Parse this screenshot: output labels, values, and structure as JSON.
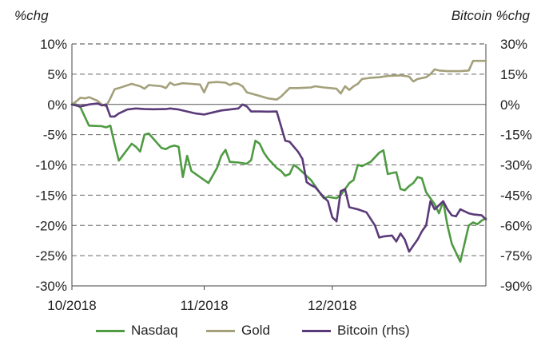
{
  "chart_data": {
    "type": "line",
    "y_left_label": "%chg",
    "y_right_label": "Bitcoin %chg",
    "y_left_ticks": [
      "10%",
      "5%",
      "0%",
      "-5%",
      "-10%",
      "-15%",
      "-20%",
      "-25%",
      "-30%"
    ],
    "y_right_ticks": [
      "30%",
      "15%",
      "0%",
      "-15%",
      "-30%",
      "-45%",
      "-60%",
      "-75%",
      "-90%"
    ],
    "y_left_range": [
      -30,
      10
    ],
    "y_right_range": [
      -90,
      30
    ],
    "x_ticks": [
      "10/2018",
      "11/2018",
      "12/2018"
    ],
    "x_range": [
      "2018-10-01",
      "2018-12-31"
    ],
    "grid": "horizontal dashed",
    "legend_position": "bottom",
    "series": [
      {
        "name": "Nasdaq",
        "axis": "left",
        "color": "#4f9a43",
        "points": [
          [
            "2018-10-01",
            0
          ],
          [
            "2018-10-02",
            0
          ],
          [
            "2018-10-03",
            -0.5
          ],
          [
            "2018-10-04",
            -2.0
          ],
          [
            "2018-10-05",
            -3.5
          ],
          [
            "2018-10-08",
            -3.6
          ],
          [
            "2018-10-09",
            -3.8
          ],
          [
            "2018-10-10",
            -3.5
          ],
          [
            "2018-10-11",
            -6.5
          ],
          [
            "2018-10-12",
            -9.3
          ],
          [
            "2018-10-15",
            -6.5
          ],
          [
            "2018-10-16",
            -7.0
          ],
          [
            "2018-10-17",
            -7.8
          ],
          [
            "2018-10-18",
            -5.0
          ],
          [
            "2018-10-19",
            -4.8
          ],
          [
            "2018-10-22",
            -7.2
          ],
          [
            "2018-10-23",
            -7.4
          ],
          [
            "2018-10-24",
            -7.0
          ],
          [
            "2018-10-25",
            -6.8
          ],
          [
            "2018-10-26",
            -7.0
          ],
          [
            "2018-10-27",
            -12.0
          ],
          [
            "2018-10-28",
            -8.5
          ],
          [
            "2018-10-29",
            -11.0
          ],
          [
            "2018-10-30",
            -11.5
          ],
          [
            "2018-11-02",
            -13.0
          ],
          [
            "2018-11-04",
            -10.5
          ],
          [
            "2018-11-05",
            -8.5
          ],
          [
            "2018-11-06",
            -7.5
          ],
          [
            "2018-11-07",
            -9.5
          ],
          [
            "2018-11-09",
            -9.6
          ],
          [
            "2018-11-11",
            -9.8
          ],
          [
            "2018-11-12",
            -9.2
          ],
          [
            "2018-11-13",
            -6.0
          ],
          [
            "2018-11-14",
            -6.5
          ],
          [
            "2018-11-15",
            -8.0
          ],
          [
            "2018-11-16",
            -9.0
          ],
          [
            "2018-11-18",
            -10.5
          ],
          [
            "2018-11-19",
            -11.0
          ],
          [
            "2018-11-20",
            -11.8
          ],
          [
            "2018-11-21",
            -11.5
          ],
          [
            "2018-11-22",
            -10.0
          ],
          [
            "2018-11-23",
            -10.5
          ],
          [
            "2018-11-26",
            -12.5
          ],
          [
            "2018-11-28",
            -14.5
          ],
          [
            "2018-11-29",
            -15.5
          ],
          [
            "2018-11-30",
            -15.3
          ],
          [
            "2018-12-02",
            -15.5
          ],
          [
            "2018-12-03",
            -15.0
          ],
          [
            "2018-12-04",
            -14.0
          ],
          [
            "2018-12-05",
            -13.0
          ],
          [
            "2018-12-06",
            -12.5
          ],
          [
            "2018-12-07",
            -10.0
          ],
          [
            "2018-12-08",
            -10.2
          ],
          [
            "2018-12-10",
            -9.5
          ],
          [
            "2018-12-12",
            -8.0
          ],
          [
            "2018-12-13",
            -7.6
          ],
          [
            "2018-12-14",
            -11.5
          ],
          [
            "2018-12-16",
            -11.2
          ],
          [
            "2018-12-17",
            -14.0
          ],
          [
            "2018-12-18",
            -14.2
          ],
          [
            "2018-12-19",
            -13.5
          ],
          [
            "2018-12-20",
            -13.0
          ],
          [
            "2018-12-21",
            -12.0
          ],
          [
            "2018-12-22",
            -12.2
          ],
          [
            "2018-12-23",
            -14.5
          ],
          [
            "2018-12-24",
            -15.5
          ],
          [
            "2018-12-25",
            -16.5
          ],
          [
            "2018-12-26",
            -18.0
          ],
          [
            "2018-12-27",
            -16.0
          ],
          [
            "2018-12-28",
            -20.0
          ],
          [
            "2018-12-29",
            -23.0
          ],
          [
            "2018-12-30",
            -24.5
          ],
          [
            "2018-12-31",
            -26.0
          ],
          [
            "2019-01-01",
            -23.0
          ],
          [
            "2019-01-02",
            -20.0
          ],
          [
            "2019-01-03",
            -19.5
          ],
          [
            "2019-01-04",
            -19.8
          ],
          [
            "2019-01-05",
            -19.2
          ],
          [
            "2019-01-06",
            -18.8
          ]
        ]
      },
      {
        "name": "Gold",
        "axis": "left",
        "color": "#a3a07a",
        "points": [
          [
            "2018-10-01",
            0
          ],
          [
            "2018-10-02",
            0.5
          ],
          [
            "2018-10-03",
            1.1
          ],
          [
            "2018-10-04",
            1.0
          ],
          [
            "2018-10-05",
            1.2
          ],
          [
            "2018-10-07",
            0.6
          ],
          [
            "2018-10-08",
            0.0
          ],
          [
            "2018-10-09",
            -0.3
          ],
          [
            "2018-10-10",
            1.0
          ],
          [
            "2018-10-11",
            2.5
          ],
          [
            "2018-10-12",
            2.7
          ],
          [
            "2018-10-15",
            3.4
          ],
          [
            "2018-10-17",
            3.0
          ],
          [
            "2018-10-18",
            2.6
          ],
          [
            "2018-10-19",
            3.2
          ],
          [
            "2018-10-22",
            3.0
          ],
          [
            "2018-10-23",
            2.7
          ],
          [
            "2018-10-24",
            3.6
          ],
          [
            "2018-10-25",
            3.2
          ],
          [
            "2018-10-27",
            3.5
          ],
          [
            "2018-10-29",
            3.4
          ],
          [
            "2018-10-31",
            3.3
          ],
          [
            "2018-11-01",
            2.0
          ],
          [
            "2018-11-02",
            3.6
          ],
          [
            "2018-11-04",
            3.7
          ],
          [
            "2018-11-06",
            3.6
          ],
          [
            "2018-11-07",
            3.2
          ],
          [
            "2018-11-08",
            3.5
          ],
          [
            "2018-11-09",
            3.4
          ],
          [
            "2018-11-10",
            3.0
          ],
          [
            "2018-11-11",
            2.0
          ],
          [
            "2018-11-12",
            1.8
          ],
          [
            "2018-11-14",
            1.4
          ],
          [
            "2018-11-16",
            1.0
          ],
          [
            "2018-11-18",
            0.8
          ],
          [
            "2018-11-19",
            1.3
          ],
          [
            "2018-11-20",
            2.0
          ],
          [
            "2018-11-21",
            2.7
          ],
          [
            "2018-11-23",
            2.7
          ],
          [
            "2018-11-26",
            2.8
          ],
          [
            "2018-11-27",
            3.0
          ],
          [
            "2018-11-29",
            2.8
          ],
          [
            "2018-12-02",
            2.6
          ],
          [
            "2018-12-03",
            1.8
          ],
          [
            "2018-12-04",
            3.0
          ],
          [
            "2018-12-05",
            2.4
          ],
          [
            "2018-12-06",
            3.0
          ],
          [
            "2018-12-07",
            3.4
          ],
          [
            "2018-12-08",
            4.2
          ],
          [
            "2018-12-10",
            4.4
          ],
          [
            "2018-12-12",
            4.5
          ],
          [
            "2018-12-14",
            4.7
          ],
          [
            "2018-12-17",
            4.8
          ],
          [
            "2018-12-19",
            4.6
          ],
          [
            "2018-12-20",
            3.8
          ],
          [
            "2018-12-21",
            4.2
          ],
          [
            "2018-12-23",
            4.5
          ],
          [
            "2018-12-24",
            5.0
          ],
          [
            "2018-12-25",
            5.8
          ],
          [
            "2018-12-26",
            5.6
          ],
          [
            "2018-12-28",
            5.5
          ],
          [
            "2018-12-31",
            5.5
          ],
          [
            "2019-01-02",
            5.6
          ],
          [
            "2019-01-03",
            7.2
          ],
          [
            "2019-01-05",
            7.2
          ],
          [
            "2019-01-06",
            7.2
          ]
        ]
      },
      {
        "name": "Bitcoin (rhs)",
        "axis": "right",
        "color": "#5a3a78",
        "points": [
          [
            "2018-10-01",
            0
          ],
          [
            "2018-10-03",
            -1.0
          ],
          [
            "2018-10-05",
            0.0
          ],
          [
            "2018-10-07",
            0.5
          ],
          [
            "2018-10-08",
            -0.5
          ],
          [
            "2018-10-09",
            0.0
          ],
          [
            "2018-10-10",
            -6.0
          ],
          [
            "2018-10-11",
            -6.0
          ],
          [
            "2018-10-12",
            -4.5
          ],
          [
            "2018-10-14",
            -2.5
          ],
          [
            "2018-10-16",
            -2.0
          ],
          [
            "2018-10-18",
            -2.3
          ],
          [
            "2018-10-20",
            -2.4
          ],
          [
            "2018-10-23",
            -2.3
          ],
          [
            "2018-10-24",
            -2.0
          ],
          [
            "2018-10-26",
            -2.5
          ],
          [
            "2018-10-28",
            -3.5
          ],
          [
            "2018-10-30",
            -4.5
          ],
          [
            "2018-11-01",
            -5.0
          ],
          [
            "2018-11-03",
            -4.0
          ],
          [
            "2018-11-05",
            -3.0
          ],
          [
            "2018-11-07",
            -2.5
          ],
          [
            "2018-11-09",
            -2.0
          ],
          [
            "2018-11-10",
            0.0
          ],
          [
            "2018-11-11",
            -1.0
          ],
          [
            "2018-11-12",
            -3.5
          ],
          [
            "2018-11-14",
            -3.5
          ],
          [
            "2018-11-16",
            -3.6
          ],
          [
            "2018-11-18",
            -3.5
          ],
          [
            "2018-11-20",
            -18.0
          ],
          [
            "2018-11-21",
            -18.5
          ],
          [
            "2018-11-23",
            -23.5
          ],
          [
            "2018-11-24",
            -27.0
          ],
          [
            "2018-11-25",
            -38.5
          ],
          [
            "2018-11-26",
            -40.0
          ],
          [
            "2018-11-27",
            -41.0
          ],
          [
            "2018-11-29",
            -46.0
          ],
          [
            "2018-11-30",
            -48.0
          ],
          [
            "2018-12-01",
            -56.0
          ],
          [
            "2018-12-02",
            -58.0
          ],
          [
            "2018-12-03",
            -43.0
          ],
          [
            "2018-12-04",
            -42.0
          ],
          [
            "2018-12-05",
            -51.0
          ],
          [
            "2018-12-07",
            -52.0
          ],
          [
            "2018-12-09",
            -53.5
          ],
          [
            "2018-12-11",
            -60.0
          ],
          [
            "2018-12-12",
            -66.0
          ],
          [
            "2018-12-13",
            -65.5
          ],
          [
            "2018-12-15",
            -65.0
          ],
          [
            "2018-12-16",
            -68.0
          ],
          [
            "2018-12-17",
            -64.0
          ],
          [
            "2018-12-18",
            -67.0
          ],
          [
            "2018-12-19",
            -73.0
          ],
          [
            "2018-12-20",
            -70.0
          ],
          [
            "2018-12-21",
            -67.0
          ],
          [
            "2018-12-22",
            -63.0
          ],
          [
            "2018-12-23",
            -60.0
          ],
          [
            "2018-12-24",
            -48.0
          ],
          [
            "2018-12-25",
            -52.0
          ],
          [
            "2018-12-26",
            -50.0
          ],
          [
            "2018-12-27",
            -48.0
          ],
          [
            "2018-12-28",
            -52.0
          ],
          [
            "2018-12-29",
            -55.0
          ],
          [
            "2018-12-30",
            -55.5
          ],
          [
            "2018-12-31",
            -52.0
          ],
          [
            "2019-01-02",
            -54.0
          ],
          [
            "2019-01-03",
            -54.5
          ],
          [
            "2019-01-05",
            -55.0
          ],
          [
            "2019-01-06",
            -57.0
          ]
        ]
      }
    ]
  }
}
